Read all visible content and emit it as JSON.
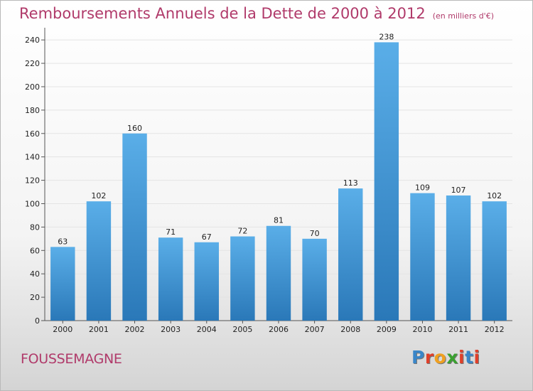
{
  "header": {
    "title": "Remboursements Annuels de la Dette de 2000 à 2012",
    "unit": "(en milliers d'€)"
  },
  "footer": {
    "commune": "FOUSSEMAGNE",
    "brand_letters": [
      "P",
      "r",
      "o",
      "x",
      "i",
      "t",
      "i"
    ],
    "brand_colors": [
      "#3a86c8",
      "#e0402a",
      "#f0a020",
      "#3aa030",
      "#e0402a",
      "#3a86c8",
      "#e0402a"
    ]
  },
  "chart_data": {
    "type": "bar",
    "categories": [
      "2000",
      "2001",
      "2002",
      "2003",
      "2004",
      "2005",
      "2006",
      "2007",
      "2008",
      "2009",
      "2010",
      "2011",
      "2012"
    ],
    "values": [
      63,
      102,
      160,
      71,
      67,
      72,
      81,
      70,
      113,
      238,
      109,
      107,
      102
    ],
    "data_labels": [
      "63",
      "102",
      "160",
      "71",
      "67",
      "72",
      "81",
      "70",
      "113",
      "238",
      "109",
      "107",
      "102"
    ],
    "yticks": [
      0,
      20,
      40,
      60,
      80,
      100,
      120,
      140,
      160,
      180,
      200,
      220,
      240
    ],
    "ylim": [
      0,
      248
    ],
    "grid": true,
    "bar_color_top": "#5aaee8",
    "bar_color_bottom": "#2a78b8"
  }
}
